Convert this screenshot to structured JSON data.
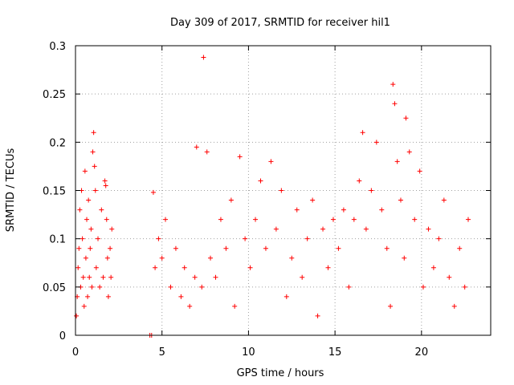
{
  "chart_data": {
    "type": "scatter",
    "title": "Day 309 of 2017, SRMTID for receiver hil1",
    "xlabel": "GPS time / hours",
    "ylabel": "SRMTID / TECUs",
    "xlim": [
      0,
      24
    ],
    "ylim": [
      0,
      0.3
    ],
    "xticks": [
      0,
      5,
      10,
      15,
      20
    ],
    "yticks": [
      0,
      0.05,
      0.1,
      0.15,
      0.2,
      0.25,
      0.3
    ],
    "xtick_labels": [
      "0",
      "5",
      "10",
      "15",
      "20"
    ],
    "ytick_labels": [
      "0",
      "0.05",
      "0.1",
      "0.15",
      "0.2",
      "0.25",
      "0.3"
    ],
    "grid": true,
    "marker": "+",
    "color": "#ff0000",
    "series": [
      {
        "values": [
          [
            0.05,
            0.02
          ],
          [
            0.1,
            0.04
          ],
          [
            0.15,
            0.07
          ],
          [
            0.2,
            0.09
          ],
          [
            0.25,
            0.13
          ],
          [
            0.3,
            0.05
          ],
          [
            0.35,
            0.15
          ],
          [
            0.4,
            0.1
          ],
          [
            0.45,
            0.06
          ],
          [
            0.5,
            0.03
          ],
          [
            0.55,
            0.17
          ],
          [
            0.6,
            0.08
          ],
          [
            0.65,
            0.12
          ],
          [
            0.7,
            0.04
          ],
          [
            0.75,
            0.14
          ],
          [
            0.8,
            0.06
          ],
          [
            0.85,
            0.09
          ],
          [
            0.9,
            0.11
          ],
          [
            0.95,
            0.05
          ],
          [
            1.0,
            0.19
          ],
          [
            1.05,
            0.21
          ],
          [
            1.1,
            0.175
          ],
          [
            1.15,
            0.15
          ],
          [
            1.2,
            0.07
          ],
          [
            1.3,
            0.1
          ],
          [
            1.4,
            0.05
          ],
          [
            1.5,
            0.13
          ],
          [
            1.6,
            0.06
          ],
          [
            1.7,
            0.16
          ],
          [
            1.75,
            0.155
          ],
          [
            1.8,
            0.12
          ],
          [
            1.85,
            0.08
          ],
          [
            1.9,
            0.04
          ],
          [
            2.0,
            0.09
          ],
          [
            2.05,
            0.06
          ],
          [
            2.1,
            0.11
          ],
          [
            4.3,
            0.0
          ],
          [
            4.4,
            0.0
          ],
          [
            4.5,
            0.148
          ],
          [
            4.6,
            0.07
          ],
          [
            4.8,
            0.1
          ],
          [
            5.0,
            0.08
          ],
          [
            5.2,
            0.12
          ],
          [
            5.5,
            0.05
          ],
          [
            5.8,
            0.09
          ],
          [
            6.1,
            0.04
          ],
          [
            6.3,
            0.07
          ],
          [
            6.6,
            0.03
          ],
          [
            6.9,
            0.06
          ],
          [
            7.0,
            0.195
          ],
          [
            7.3,
            0.05
          ],
          [
            7.4,
            0.288
          ],
          [
            7.6,
            0.19
          ],
          [
            7.8,
            0.08
          ],
          [
            8.1,
            0.06
          ],
          [
            8.4,
            0.12
          ],
          [
            8.7,
            0.09
          ],
          [
            9.0,
            0.14
          ],
          [
            9.2,
            0.03
          ],
          [
            9.5,
            0.185
          ],
          [
            9.8,
            0.1
          ],
          [
            10.1,
            0.07
          ],
          [
            10.4,
            0.12
          ],
          [
            10.7,
            0.16
          ],
          [
            11.0,
            0.09
          ],
          [
            11.3,
            0.18
          ],
          [
            11.6,
            0.11
          ],
          [
            11.9,
            0.15
          ],
          [
            12.2,
            0.04
          ],
          [
            12.5,
            0.08
          ],
          [
            12.8,
            0.13
          ],
          [
            13.1,
            0.06
          ],
          [
            13.4,
            0.1
          ],
          [
            13.7,
            0.14
          ],
          [
            14.0,
            0.02
          ],
          [
            14.3,
            0.11
          ],
          [
            14.6,
            0.07
          ],
          [
            14.9,
            0.12
          ],
          [
            15.2,
            0.09
          ],
          [
            15.5,
            0.13
          ],
          [
            15.8,
            0.05
          ],
          [
            16.1,
            0.12
          ],
          [
            16.4,
            0.16
          ],
          [
            16.6,
            0.21
          ],
          [
            16.8,
            0.11
          ],
          [
            17.1,
            0.15
          ],
          [
            17.4,
            0.2
          ],
          [
            17.7,
            0.13
          ],
          [
            18.0,
            0.09
          ],
          [
            18.2,
            0.03
          ],
          [
            18.35,
            0.26
          ],
          [
            18.45,
            0.24
          ],
          [
            18.6,
            0.18
          ],
          [
            18.8,
            0.14
          ],
          [
            19.0,
            0.08
          ],
          [
            19.1,
            0.225
          ],
          [
            19.3,
            0.19
          ],
          [
            19.6,
            0.12
          ],
          [
            19.9,
            0.17
          ],
          [
            20.1,
            0.05
          ],
          [
            20.4,
            0.11
          ],
          [
            20.7,
            0.07
          ],
          [
            21.0,
            0.1
          ],
          [
            21.3,
            0.14
          ],
          [
            21.6,
            0.06
          ],
          [
            21.9,
            0.03
          ],
          [
            22.2,
            0.09
          ],
          [
            22.5,
            0.05
          ],
          [
            22.7,
            0.12
          ]
        ]
      }
    ]
  }
}
